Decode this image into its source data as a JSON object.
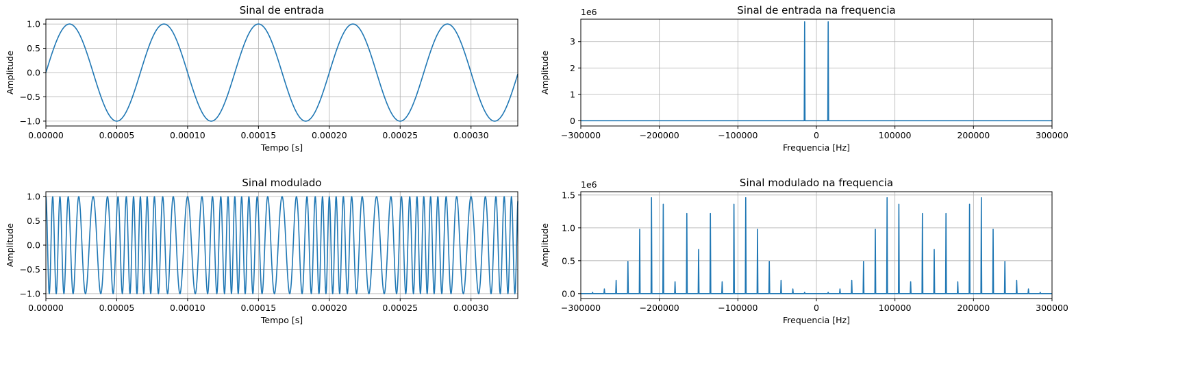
{
  "figure": {
    "line_color": "#1f77b4"
  },
  "chart_data": [
    {
      "type": "line",
      "title": "Sinal de entrada",
      "xlabel": "Tempo [s]",
      "ylabel": "Amplitude",
      "grid": true,
      "xlim": [
        0,
        0.000333
      ],
      "ylim": [
        -1.1,
        1.1
      ],
      "xticks": [
        0,
        5e-05,
        0.0001,
        0.00015,
        0.0002,
        0.00025,
        0.0003
      ],
      "xtick_labels": [
        "0.00000",
        "0.00005",
        "0.00010",
        "0.00015",
        "0.00020",
        "0.00025",
        "0.00030"
      ],
      "yticks": [
        -1,
        -0.5,
        0,
        0.5,
        1
      ],
      "ytick_labels": [
        "−1.0",
        "−0.5",
        "0.0",
        "0.5",
        "1.0"
      ],
      "signal": {
        "kind": "sine",
        "amplitude": 1,
        "frequency_hz": 15000
      }
    },
    {
      "type": "line",
      "title": "Sinal de entrada na frequencia",
      "xlabel": "Frequencia [Hz]",
      "ylabel": "Amplitude",
      "grid": true,
      "xlim": [
        -300000,
        300000
      ],
      "ylim": [
        -0.2,
        3.85
      ],
      "y_scale_label": "1e6",
      "xticks": [
        -300000,
        -200000,
        -100000,
        0,
        100000,
        200000,
        300000
      ],
      "xtick_labels": [
        "−300000",
        "−200000",
        "−100000",
        "0",
        "100000",
        "200000",
        "300000"
      ],
      "yticks": [
        0,
        1,
        2,
        3
      ],
      "ytick_labels": [
        "0",
        "1",
        "2",
        "3"
      ],
      "spikes": {
        "x": [
          -15000,
          15000
        ],
        "y": [
          3.75,
          3.75
        ]
      }
    },
    {
      "type": "line",
      "title": "Sinal modulado",
      "xlabel": "Tempo [s]",
      "ylabel": "Amplitude",
      "grid": true,
      "xlim": [
        0,
        0.000333
      ],
      "ylim": [
        -1.1,
        1.1
      ],
      "xticks": [
        0,
        5e-05,
        0.0001,
        0.00015,
        0.0002,
        0.00025,
        0.0003
      ],
      "xtick_labels": [
        "0.00000",
        "0.00005",
        "0.00010",
        "0.00015",
        "0.00020",
        "0.00025",
        "0.00030"
      ],
      "yticks": [
        -1,
        -0.5,
        0,
        0.5,
        1
      ],
      "ytick_labels": [
        "−1.0",
        "−0.5",
        "0.0",
        "0.5",
        "1.0"
      ],
      "signal": {
        "kind": "fm",
        "amplitude": 1,
        "carrier_hz": 150000,
        "modulating_hz": 15000,
        "modulation_index": 4
      }
    },
    {
      "type": "line",
      "title": "Sinal modulado na frequencia",
      "xlabel": "Frequencia [Hz]",
      "ylabel": "Amplitude",
      "grid": true,
      "xlim": [
        -300000,
        300000
      ],
      "ylim": [
        -0.075,
        1.55
      ],
      "y_scale_label": "1e6",
      "xticks": [
        -300000,
        -200000,
        -100000,
        0,
        100000,
        200000,
        300000
      ],
      "xtick_labels": [
        "−300000",
        "−200000",
        "−100000",
        "0",
        "100000",
        "200000",
        "300000"
      ],
      "yticks": [
        0,
        0.5,
        1,
        1.5
      ],
      "ytick_labels": [
        "0.0",
        "0.5",
        "1.0",
        "1.5"
      ],
      "spikes": {
        "x": [
          -285000,
          -270000,
          -255000,
          -240000,
          -225000,
          -210000,
          -195000,
          -180000,
          -165000,
          -150000,
          -135000,
          -120000,
          -105000,
          -90000,
          -75000,
          -60000,
          -45000,
          -30000,
          -15000,
          15000,
          30000,
          45000,
          60000,
          75000,
          90000,
          105000,
          120000,
          135000,
          150000,
          165000,
          180000,
          195000,
          210000,
          225000,
          240000,
          255000,
          270000,
          285000
        ],
        "y": [
          0.02,
          0.07,
          0.2,
          0.49,
          0.98,
          1.46,
          1.36,
          0.18,
          1.22,
          0.67,
          1.22,
          0.18,
          1.36,
          1.46,
          0.98,
          0.49,
          0.2,
          0.07,
          0.02,
          0.02,
          0.07,
          0.2,
          0.49,
          0.98,
          1.46,
          1.36,
          0.18,
          1.22,
          0.67,
          1.22,
          0.18,
          1.36,
          1.46,
          0.98,
          0.49,
          0.2,
          0.07,
          0.02
        ]
      }
    }
  ]
}
